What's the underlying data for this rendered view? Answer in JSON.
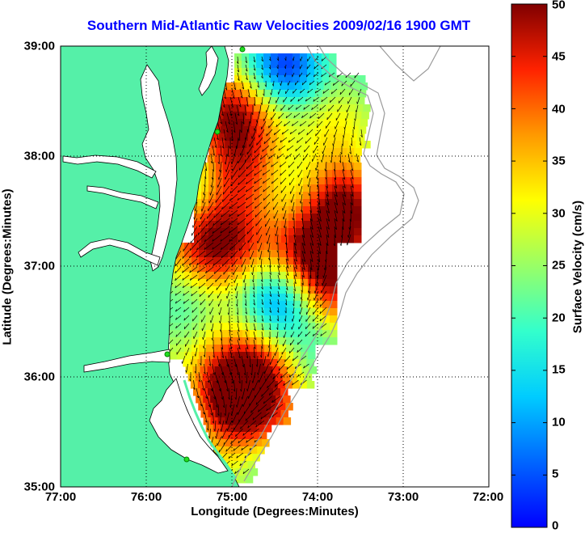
{
  "title": "Southern Mid-Atlantic Raw Velocities 2009/02/16 1900 GMT",
  "x_axis": {
    "label": "Longitude (Degrees:Minutes)",
    "ticks": [
      "77:00",
      "76:00",
      "75:00",
      "74:00",
      "73:00",
      "72:00"
    ]
  },
  "y_axis": {
    "label": "Latitude (Degrees:Minutes)",
    "ticks": [
      "39:00",
      "38:00",
      "37:00",
      "36:00",
      "35:00"
    ]
  },
  "colorbar": {
    "label": "Surface Velocity (cm/s)",
    "ticks": [
      "50",
      "45",
      "40",
      "35",
      "30",
      "25",
      "20",
      "15",
      "10",
      "5",
      "0"
    ],
    "range": [
      0,
      50
    ],
    "colormap": "jet"
  },
  "colors": {
    "land": "#55f0a8",
    "water": "#ffffff",
    "title": "#0000ff",
    "arrows": "#000000",
    "grid": "#000000",
    "bathymetry": "#9a9a9a",
    "stations": "#22dd22"
  },
  "map": {
    "lon_range": [
      -77,
      -72
    ],
    "lat_range": [
      35,
      39
    ],
    "grid": "dotted",
    "field": "surface current velocity with vector arrows"
  }
}
